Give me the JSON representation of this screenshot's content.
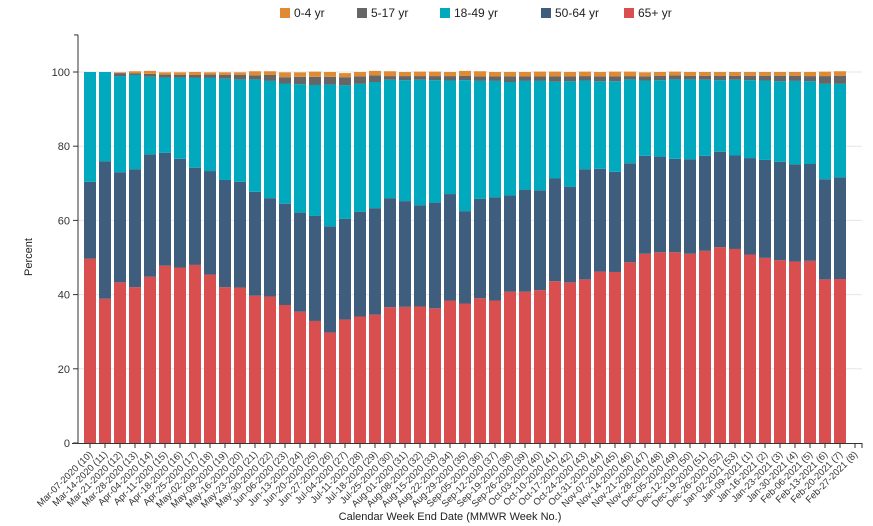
{
  "chart_data": {
    "type": "bar",
    "stacked": true,
    "title": "",
    "xlabel": "Calendar Week End Date (MMWR Week No.)",
    "ylabel": "Percent",
    "ylim": [
      0,
      110
    ],
    "yticks": [
      0,
      20,
      40,
      60,
      80,
      100
    ],
    "grid": true,
    "legend_position": "top",
    "categories": [
      "Mar-07-2020 (10)",
      "Mar-14-2020 (11)",
      "Mar-21-2020 (12)",
      "Mar-28-2020 (13)",
      "Apr-04-2020 (14)",
      "Apr-11-2020 (15)",
      "Apr-18-2020 (16)",
      "Apr-25-2020 (17)",
      "May-02-2020 (18)",
      "May-09-2020 (19)",
      "May-16-2020 (20)",
      "May-23-2020 (21)",
      "May-30-2020 (22)",
      "Jun-06-2020 (23)",
      "Jun-13-2020 (24)",
      "Jun-20-2020 (25)",
      "Jun-27-2020 (26)",
      "Jul-04-2020 (27)",
      "Jul-11-2020 (28)",
      "Jul-18-2020 (29)",
      "Jul-25-2020 (30)",
      "Aug-01-2020 (31)",
      "Aug-08-2020 (32)",
      "Aug-15-2020 (33)",
      "Aug-22-2020 (34)",
      "Aug-29-2020 (35)",
      "Sep-05-2020 (36)",
      "Sep-12-2020 (37)",
      "Sep-19-2020 (38)",
      "Sep-26-2020 (39)",
      "Oct-03-2020 (40)",
      "Oct-10-2020 (41)",
      "Oct-17-2020 (42)",
      "Oct-24-2020 (43)",
      "Oct-31-2020 (44)",
      "Nov-07-2020 (45)",
      "Nov-14-2020 (46)",
      "Nov-21-2020 (47)",
      "Nov-28-2020 (48)",
      "Dec-05-2020 (49)",
      "Dec-12-2020 (50)",
      "Dec-19-2020 (51)",
      "Dec-26-2020 (52)",
      "Jan-02-2021 (53)",
      "Jan-09-2021 (1)",
      "Jan-16-2021 (2)",
      "Jan-23-2021 (3)",
      "Jan-30-2021 (4)",
      "Feb-06-2021 (5)",
      "Feb-13-2021 (6)",
      "Feb-20-2021 (7)",
      "Feb-27-2021 (8)"
    ],
    "series": [
      {
        "name": "65+ yr",
        "color": "#d94f4f",
        "values": [
          49.7,
          38.9,
          43.3,
          42.0,
          44.8,
          47.8,
          47.3,
          48.0,
          45.4,
          42.0,
          41.9,
          39.7,
          39.5,
          37.2,
          35.4,
          32.9,
          29.8,
          33.3,
          34.1,
          34.6,
          36.6,
          36.7,
          36.8,
          36.3,
          38.4,
          37.6,
          39.0,
          38.4,
          40.8,
          40.8,
          41.2,
          43.6,
          43.3,
          44.1,
          46.2,
          46.1,
          48.7,
          51.0,
          51.4,
          51.4,
          51.0,
          51.8,
          52.8,
          52.3,
          50.8,
          49.9,
          49.3,
          48.9,
          49.1,
          44.1,
          44.2,
          null
        ]
      },
      {
        "name": "50-64 yr",
        "color": "#3f5d7d",
        "values": [
          20.7,
          37.0,
          29.7,
          31.8,
          33.0,
          30.4,
          29.3,
          26.2,
          27.9,
          28.9,
          28.5,
          28.0,
          26.5,
          27.3,
          26.7,
          28.3,
          28.6,
          27.1,
          28.2,
          28.7,
          29.4,
          28.5,
          27.3,
          28.5,
          28.7,
          24.9,
          26.8,
          27.8,
          25.9,
          27.5,
          26.9,
          27.7,
          25.8,
          29.7,
          27.7,
          27.0,
          26.7,
          26.4,
          25.8,
          25.2,
          25.5,
          25.6,
          25.7,
          25.2,
          26.0,
          26.4,
          26.5,
          26.2,
          26.1,
          27.0,
          27.4,
          null
        ]
      },
      {
        "name": "18-49 yr",
        "color": "#00a9bd",
        "values": [
          29.6,
          24.1,
          25.9,
          25.4,
          20.9,
          20.3,
          21.9,
          24.2,
          25.1,
          27.3,
          27.6,
          30.3,
          31.6,
          32.4,
          34.6,
          35.3,
          38.2,
          36.0,
          34.5,
          34.0,
          31.9,
          32.6,
          33.8,
          33.0,
          30.6,
          35.3,
          31.8,
          31.4,
          30.6,
          29.3,
          29.5,
          26.1,
          28.4,
          23.9,
          23.6,
          24.4,
          22.6,
          20.3,
          20.6,
          21.4,
          21.5,
          20.5,
          19.3,
          20.4,
          21.0,
          21.4,
          21.7,
          22.5,
          22.3,
          25.7,
          25.2,
          null
        ]
      },
      {
        "name": "5-17 yr",
        "color": "#666666",
        "values": [
          0.0,
          0.0,
          0.8,
          0.4,
          0.8,
          0.8,
          0.7,
          0.8,
          0.9,
          1.0,
          1.2,
          1.1,
          1.6,
          1.7,
          2.0,
          2.2,
          2.1,
          2.2,
          2.0,
          1.8,
          1.0,
          1.1,
          1.0,
          1.1,
          1.2,
          1.2,
          1.2,
          1.2,
          1.5,
          1.2,
          1.2,
          1.4,
          1.3,
          1.2,
          1.3,
          1.3,
          0.9,
          1.1,
          1.2,
          1.1,
          1.0,
          1.1,
          1.2,
          1.1,
          1.2,
          1.3,
          1.5,
          1.4,
          1.4,
          2.1,
          2.2,
          null
        ]
      },
      {
        "name": "0-4 yr",
        "color": "#e08a33",
        "values": [
          0.0,
          0.0,
          0.2,
          0.6,
          0.8,
          0.6,
          0.7,
          0.8,
          0.6,
          0.7,
          0.7,
          1.1,
          1.0,
          1.3,
          1.2,
          1.4,
          1.3,
          1.1,
          1.2,
          1.2,
          1.3,
          1.1,
          1.2,
          1.2,
          1.1,
          1.3,
          1.4,
          1.2,
          1.2,
          1.2,
          1.3,
          1.3,
          1.2,
          1.2,
          1.2,
          1.3,
          1.2,
          1.1,
          1.0,
          1.0,
          1.0,
          1.0,
          1.0,
          1.0,
          1.0,
          1.0,
          1.0,
          1.0,
          1.1,
          1.2,
          1.2,
          null
        ]
      }
    ],
    "legend_order": [
      "0-4 yr",
      "5-17 yr",
      "18-49 yr",
      "50-64 yr",
      "65+ yr"
    ]
  }
}
